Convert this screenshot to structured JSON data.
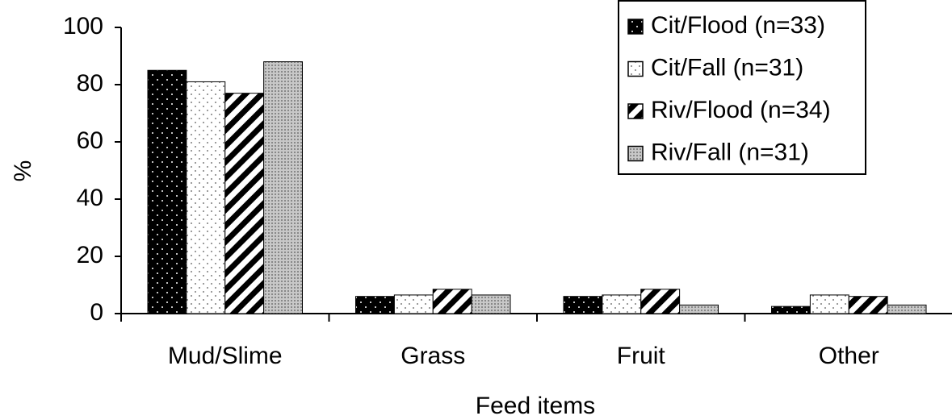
{
  "chart_data": {
    "type": "bar",
    "x_label": "Feed items",
    "y_label": "%",
    "categories": [
      "Mud/Slime",
      "Grass",
      "Fruit",
      "Other"
    ],
    "series": [
      {
        "name": "Cit/Flood (n=33)",
        "color": "#000000",
        "values": [
          85,
          6,
          6,
          2.5
        ]
      },
      {
        "name": "Cit/Fall (n=31)",
        "color": "#ffffff",
        "values": [
          81,
          6.5,
          6.5,
          6.5
        ]
      },
      {
        "name": "Riv/Flood (n=34)",
        "color": "#ffffff",
        "values": [
          77,
          8.5,
          8.5,
          6
        ]
      },
      {
        "name": "Riv/Fall (n=31)",
        "color": "#c8c8c8",
        "values": [
          88,
          6.5,
          3,
          3
        ]
      }
    ],
    "ylim": [
      0,
      100
    ],
    "yticks": [
      0,
      20,
      40,
      60,
      80,
      100
    ],
    "legend": "upper right"
  }
}
